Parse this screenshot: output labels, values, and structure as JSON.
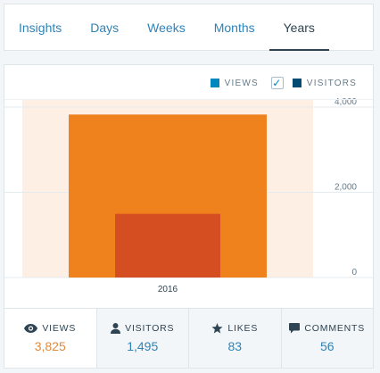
{
  "tabs": [
    {
      "label": "Insights"
    },
    {
      "label": "Days"
    },
    {
      "label": "Weeks"
    },
    {
      "label": "Months"
    },
    {
      "label": "Years",
      "active": true
    }
  ],
  "legend": {
    "views_label": "VIEWS",
    "visitors_label": "VISITORS",
    "visitors_checked": true,
    "colors": {
      "views": "#0087be",
      "visitors": "#044b72"
    }
  },
  "chart_data": {
    "type": "bar",
    "categories": [
      "2016"
    ],
    "series": [
      {
        "name": "Views",
        "values": [
          3825
        ],
        "color": "#f0821e"
      },
      {
        "name": "Visitors",
        "values": [
          1495
        ],
        "color": "#d54e21"
      }
    ],
    "y_ticks": [
      0,
      2000,
      4000
    ],
    "y_tick_labels": [
      "0",
      "2,000",
      "4,000"
    ],
    "ylim": [
      0,
      4000
    ],
    "highlight_color": "#fdefe4",
    "grid": true
  },
  "summary": [
    {
      "label": "VIEWS",
      "value": "3,825",
      "icon": "eye-icon",
      "active": true
    },
    {
      "label": "VISITORS",
      "value": "1,495",
      "icon": "person-icon"
    },
    {
      "label": "LIKES",
      "value": "83",
      "icon": "star-icon"
    },
    {
      "label": "COMMENTS",
      "value": "56",
      "icon": "comment-icon"
    }
  ]
}
